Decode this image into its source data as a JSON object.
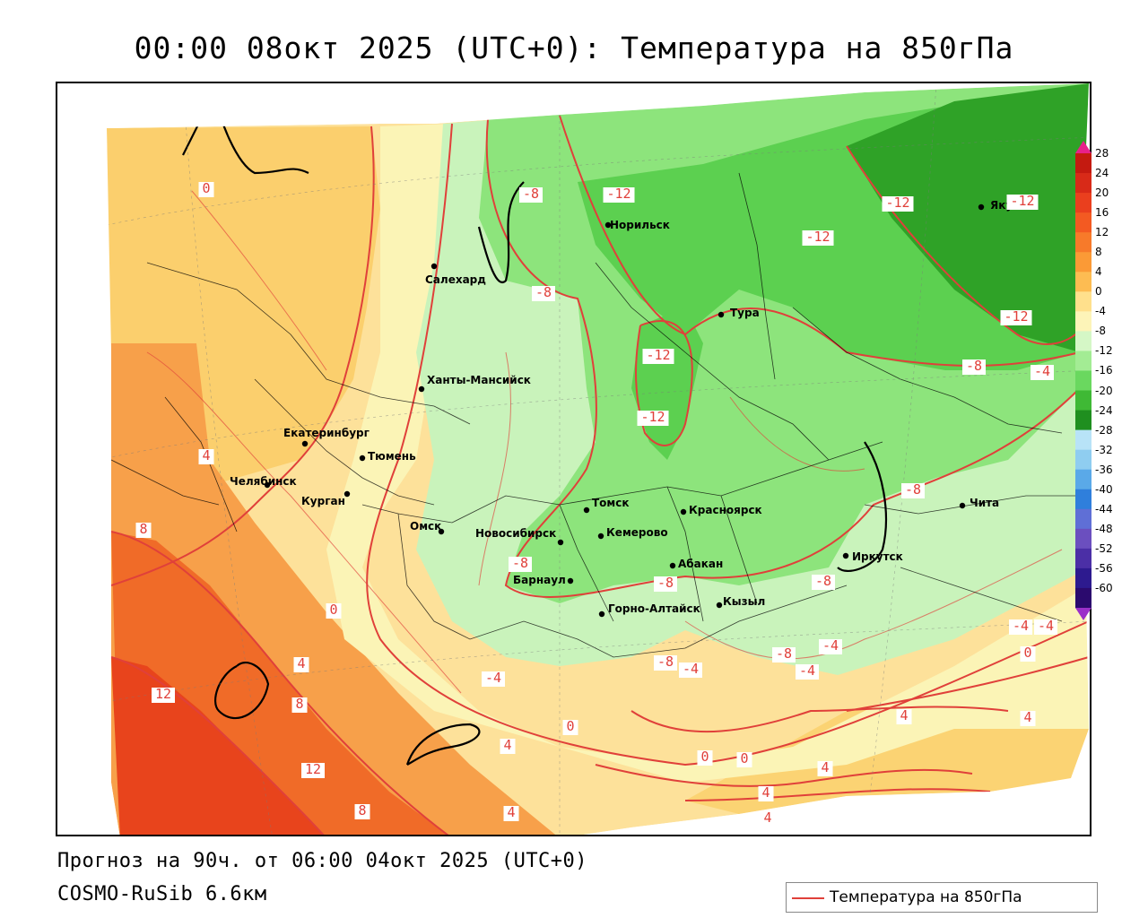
{
  "title": "00:00 08окт 2025 (UTC+0): Температура на 850гПа",
  "forecast_line": "Прогноз на 90ч. от 06:00 04окт 2025 (UTC+0)",
  "model_line": "COSMO-RuSib 6.6км",
  "legend": {
    "label": "Температура на 850гПа",
    "line_color": "#e0403a"
  },
  "colorbar": {
    "ticks": [
      "28",
      "24",
      "20",
      "16",
      "12",
      "8",
      "4",
      "0",
      "-4",
      "-8",
      "-12",
      "-16",
      "-20",
      "-24",
      "-28",
      "-32",
      "-36",
      "-40",
      "-44",
      "-48",
      "-52",
      "-56",
      "-60"
    ],
    "colors": [
      "#c41a10",
      "#d82a18",
      "#ea3f1e",
      "#f35a22",
      "#f77a2a",
      "#fb9a36",
      "#fdbc52",
      "#ffe08c",
      "#fdf4b8",
      "#d5f7c6",
      "#a3ec94",
      "#6ad85f",
      "#3fb935",
      "#1f8f1f",
      "#b8e3f7",
      "#8fcdf0",
      "#5aa9e8",
      "#2f7fdc",
      "#5f6fd6",
      "#6b4fbf",
      "#4b2fa6",
      "#2d1a8f",
      "#2b0a6e"
    ],
    "top_arrow_color": "#e8208a",
    "bottom_arrow_color": "#9b30c9"
  },
  "cities": [
    {
      "name": "Салехард"
    },
    {
      "name": "Норильск"
    },
    {
      "name": "Тура"
    },
    {
      "name": "Якутск"
    },
    {
      "name": "Ханты-Мансийск"
    },
    {
      "name": "Екатеринбург"
    },
    {
      "name": "Тюмень"
    },
    {
      "name": "Челябинск"
    },
    {
      "name": "Курган"
    },
    {
      "name": "Омск"
    },
    {
      "name": "Новосибирск"
    },
    {
      "name": "Томск"
    },
    {
      "name": "Кемерово"
    },
    {
      "name": "Красноярск"
    },
    {
      "name": "Барнаул"
    },
    {
      "name": "Абакан"
    },
    {
      "name": "Горно-Алтайск"
    },
    {
      "name": "Кызыл"
    },
    {
      "name": "Иркутск"
    },
    {
      "name": "Чита"
    }
  ],
  "isotherm_labels": [
    "0",
    "-8",
    "-12",
    "-12",
    "-12",
    "-12",
    "-12",
    "-8",
    "-12",
    "-12",
    "-8",
    "4",
    "8",
    "0",
    "4",
    "12",
    "8",
    "12",
    "8",
    "4",
    "-8",
    "-4",
    "-4",
    "-8",
    "-4",
    "-8",
    "0",
    "-4",
    "0",
    "4",
    "4",
    "0",
    "4",
    "4",
    "-4",
    "-4",
    "0",
    "4",
    "-8",
    "-4",
    "4",
    "-8",
    "-8"
  ]
}
